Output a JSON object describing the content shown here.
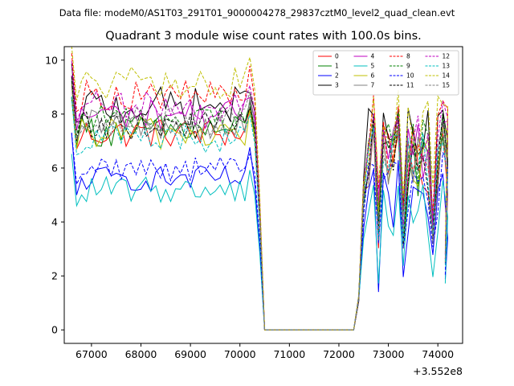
{
  "figure": {
    "suptitle": "Data file: modeM0/AS1T03_291T01_9000004278_29837cztM0_level2_quad_clean.evt"
  },
  "chart_data": {
    "type": "line",
    "title": "Quadrant 3 module wise count rates with 100.0s bins.",
    "xlabel": "",
    "ylabel": "",
    "x_offset_label": "+3.552e8",
    "xlim": [
      66450,
      74500
    ],
    "ylim": [
      -0.5,
      10.5
    ],
    "x_ticks": [
      67000,
      68000,
      69000,
      70000,
      71000,
      72000,
      73000,
      74000
    ],
    "x_tick_labels": [
      "67000",
      "68000",
      "69000",
      "70000",
      "71000",
      "72000",
      "73000",
      "74000"
    ],
    "y_ticks": [
      0,
      2,
      4,
      6,
      8,
      10
    ],
    "y_tick_labels": [
      "0",
      "2",
      "4",
      "6",
      "8",
      "10"
    ],
    "legend_position": "upper right",
    "legend_ncol": 4,
    "segments": {
      "first": {
        "x_start": 66600,
        "x_step": 100,
        "count": 38
      },
      "gap_drop_x": 70400,
      "gap_zero_x": [
        70500,
        72300
      ],
      "second": {
        "x_start": 72300,
        "x_step": 100,
        "count": 19
      }
    },
    "series": [
      {
        "name": "0",
        "color": "#ff0000",
        "dash": "solid",
        "base": 7.3,
        "base2": 6.3,
        "v": 0.35
      },
      {
        "name": "1",
        "color": "#008000",
        "dash": "solid",
        "base": 7.4,
        "base2": 6.1,
        "v": 0.4
      },
      {
        "name": "2",
        "color": "#0000ff",
        "dash": "solid",
        "base": 5.6,
        "base2": 4.7,
        "v": 0.3
      },
      {
        "name": "3",
        "color": "#000000",
        "dash": "solid",
        "base": 8.3,
        "base2": 7.0,
        "v": 0.45
      },
      {
        "name": "4",
        "color": "#bf00bf",
        "dash": "solid",
        "base": 8.0,
        "base2": 6.5,
        "v": 0.35
      },
      {
        "name": "5",
        "color": "#00bfbf",
        "dash": "solid",
        "base": 5.2,
        "base2": 4.3,
        "v": 0.3
      },
      {
        "name": "6",
        "color": "#bfbf00",
        "dash": "solid",
        "base": 7.3,
        "base2": 6.2,
        "v": 0.4
      },
      {
        "name": "7",
        "color": "#808080",
        "dash": "solid",
        "base": 7.6,
        "base2": 6.4,
        "v": 0.35
      },
      {
        "name": "8",
        "color": "#ff0000",
        "dash": "dashed",
        "base": 8.7,
        "base2": 7.1,
        "v": 0.35
      },
      {
        "name": "9",
        "color": "#008000",
        "dash": "dashed",
        "base": 7.8,
        "base2": 6.6,
        "v": 0.35
      },
      {
        "name": "10",
        "color": "#0000ff",
        "dash": "dashed",
        "base": 6.0,
        "base2": 5.1,
        "v": 0.3
      },
      {
        "name": "11",
        "color": "#000000",
        "dash": "dashed",
        "base": 7.6,
        "base2": 6.5,
        "v": 0.35
      },
      {
        "name": "12",
        "color": "#bf00bf",
        "dash": "dashed",
        "base": 8.3,
        "base2": 6.9,
        "v": 0.35
      },
      {
        "name": "13",
        "color": "#00bfbf",
        "dash": "dashed",
        "base": 7.1,
        "base2": 6.0,
        "v": 0.35
      },
      {
        "name": "14",
        "color": "#bfbf00",
        "dash": "dashed",
        "base": 9.1,
        "base2": 7.4,
        "v": 0.4
      },
      {
        "name": "15",
        "color": "#808080",
        "dash": "dashed",
        "base": 7.7,
        "base2": 6.4,
        "v": 0.35
      }
    ]
  }
}
